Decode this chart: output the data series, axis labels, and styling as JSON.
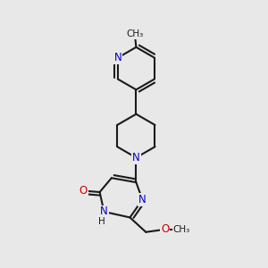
{
  "bg_color": "#e8e8e8",
  "bond_color": "#1a1a1a",
  "N_color": "#0000cc",
  "O_color": "#cc0000",
  "line_width": 1.5,
  "fs": 8.5,
  "fs_small": 7.5,
  "fig_w": 3.0,
  "fig_h": 3.0,
  "dpi": 100,
  "xlim": [
    0,
    10
  ],
  "ylim": [
    0,
    10
  ],
  "dbo": 0.12
}
